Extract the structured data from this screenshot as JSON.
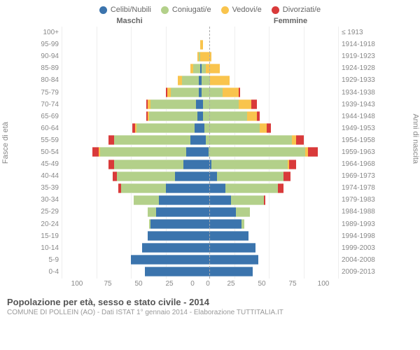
{
  "type": "population-pyramid",
  "legend": [
    {
      "label": "Celibi/Nubili",
      "color": "#3b74ad"
    },
    {
      "label": "Coniugati/e",
      "color": "#b3d08a"
    },
    {
      "label": "Vedovi/e",
      "color": "#f9c44d"
    },
    {
      "label": "Divorziati/e",
      "color": "#d93a3a"
    }
  ],
  "headers": {
    "male": "Maschi",
    "female": "Femmine"
  },
  "axis_titles": {
    "left": "Fasce di età",
    "right": "Anni di nascita"
  },
  "x_max": 100,
  "x_ticks": [
    "100",
    "75",
    "50",
    "25",
    "0",
    "25",
    "50",
    "75",
    "100"
  ],
  "footer": {
    "title": "Popolazione per età, sesso e stato civile - 2014",
    "subtitle": "COMUNE DI POLLEIN (AO) - Dati ISTAT 1° gennaio 2014 - Elaborazione TUTTITALIA.IT"
  },
  "colors": {
    "celibi": "#3b74ad",
    "coniugati": "#b3d08a",
    "vedovi": "#f9c44d",
    "divorziati": "#d93a3a",
    "grid": "#eeeeee",
    "text": "#888888",
    "center_dash": "#aaaaaa"
  },
  "rows": [
    {
      "age": "100+",
      "year": "≤ 1913",
      "m": {
        "c": 0,
        "s": 0,
        "v": 0,
        "d": 0
      },
      "f": {
        "c": 0,
        "s": 0,
        "v": 0,
        "d": 0
      }
    },
    {
      "age": "95-99",
      "year": "1914-1918",
      "m": {
        "c": 0,
        "s": 0,
        "v": 0,
        "d": 0
      },
      "f": {
        "c": 0,
        "s": 0,
        "v": 2,
        "d": 0
      }
    },
    {
      "age": "90-94",
      "year": "1919-1923",
      "m": {
        "c": 0,
        "s": 1,
        "v": 1,
        "d": 0
      },
      "f": {
        "c": 0,
        "s": 0,
        "v": 8,
        "d": 0
      }
    },
    {
      "age": "85-89",
      "year": "1924-1928",
      "m": {
        "c": 0,
        "s": 5,
        "v": 2,
        "d": 0
      },
      "f": {
        "c": 1,
        "s": 3,
        "v": 10,
        "d": 0
      }
    },
    {
      "age": "80-84",
      "year": "1929-1933",
      "m": {
        "c": 1,
        "s": 12,
        "v": 3,
        "d": 0
      },
      "f": {
        "c": 1,
        "s": 6,
        "v": 14,
        "d": 0
      }
    },
    {
      "age": "75-79",
      "year": "1934-1938",
      "m": {
        "c": 1,
        "s": 20,
        "v": 3,
        "d": 1
      },
      "f": {
        "c": 1,
        "s": 15,
        "v": 12,
        "d": 1
      }
    },
    {
      "age": "70-74",
      "year": "1939-1943",
      "m": {
        "c": 3,
        "s": 33,
        "v": 2,
        "d": 1
      },
      "f": {
        "c": 2,
        "s": 26,
        "v": 9,
        "d": 4
      }
    },
    {
      "age": "65-69",
      "year": "1944-1948",
      "m": {
        "c": 2,
        "s": 35,
        "v": 1,
        "d": 1
      },
      "f": {
        "c": 2,
        "s": 32,
        "v": 7,
        "d": 2
      }
    },
    {
      "age": "60-64",
      "year": "1949-1953",
      "m": {
        "c": 4,
        "s": 42,
        "v": 1,
        "d": 2
      },
      "f": {
        "c": 3,
        "s": 40,
        "v": 5,
        "d": 3
      }
    },
    {
      "age": "55-59",
      "year": "1954-1958",
      "m": {
        "c": 7,
        "s": 55,
        "v": 0,
        "d": 4
      },
      "f": {
        "c": 4,
        "s": 62,
        "v": 3,
        "d": 6
      }
    },
    {
      "age": "50-54",
      "year": "1959-1963",
      "m": {
        "c": 10,
        "s": 62,
        "v": 1,
        "d": 5
      },
      "f": {
        "c": 6,
        "s": 70,
        "v": 2,
        "d": 7
      }
    },
    {
      "age": "45-49",
      "year": "1964-1968",
      "m": {
        "c": 12,
        "s": 50,
        "v": 0,
        "d": 4
      },
      "f": {
        "c": 8,
        "s": 55,
        "v": 1,
        "d": 5
      }
    },
    {
      "age": "40-44",
      "year": "1969-1973",
      "m": {
        "c": 18,
        "s": 42,
        "v": 0,
        "d": 3
      },
      "f": {
        "c": 12,
        "s": 48,
        "v": 0,
        "d": 5
      }
    },
    {
      "age": "35-39",
      "year": "1974-1978",
      "m": {
        "c": 25,
        "s": 32,
        "v": 0,
        "d": 2
      },
      "f": {
        "c": 18,
        "s": 38,
        "v": 0,
        "d": 4
      }
    },
    {
      "age": "30-34",
      "year": "1979-1983",
      "m": {
        "c": 30,
        "s": 18,
        "v": 0,
        "d": 0
      },
      "f": {
        "c": 22,
        "s": 24,
        "v": 0,
        "d": 1
      }
    },
    {
      "age": "25-29",
      "year": "1984-1988",
      "m": {
        "c": 32,
        "s": 6,
        "v": 0,
        "d": 0
      },
      "f": {
        "c": 26,
        "s": 10,
        "v": 0,
        "d": 0
      }
    },
    {
      "age": "20-24",
      "year": "1989-1993",
      "m": {
        "c": 36,
        "s": 1,
        "v": 0,
        "d": 0
      },
      "f": {
        "c": 30,
        "s": 2,
        "v": 0,
        "d": 0
      }
    },
    {
      "age": "15-19",
      "year": "1994-1998",
      "m": {
        "c": 38,
        "s": 0,
        "v": 0,
        "d": 0
      },
      "f": {
        "c": 35,
        "s": 0,
        "v": 0,
        "d": 0
      }
    },
    {
      "age": "10-14",
      "year": "1999-2003",
      "m": {
        "c": 42,
        "s": 0,
        "v": 0,
        "d": 0
      },
      "f": {
        "c": 40,
        "s": 0,
        "v": 0,
        "d": 0
      }
    },
    {
      "age": "5-9",
      "year": "2004-2008",
      "m": {
        "c": 50,
        "s": 0,
        "v": 0,
        "d": 0
      },
      "f": {
        "c": 42,
        "s": 0,
        "v": 0,
        "d": 0
      }
    },
    {
      "age": "0-4",
      "year": "2009-2013",
      "m": {
        "c": 40,
        "s": 0,
        "v": 0,
        "d": 0
      },
      "f": {
        "c": 38,
        "s": 0,
        "v": 0,
        "d": 0
      }
    }
  ]
}
